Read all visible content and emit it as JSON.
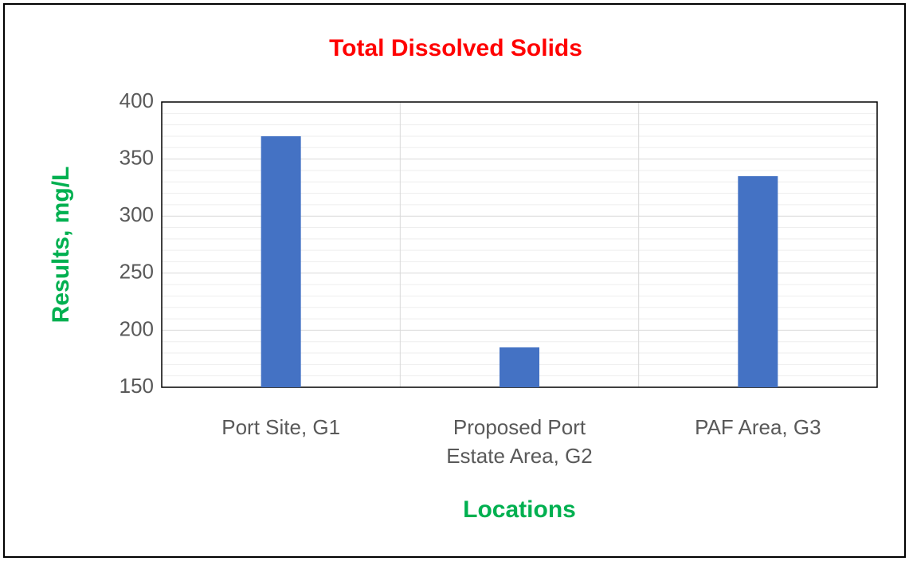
{
  "chart_data": {
    "type": "bar",
    "title": "Total Dissolved Solids",
    "categories": [
      "Port Site, G1",
      "Proposed Port Estate Area, G2",
      "PAF Area, G3"
    ],
    "values": [
      370,
      185,
      335
    ],
    "color": "#4472c4",
    "x_label": "Locations",
    "y_label": "Results, mg/L",
    "ylim": [
      150,
      400
    ],
    "yticks": [
      150,
      200,
      250,
      300,
      350,
      400
    ],
    "y_minor_ticks": [
      160,
      170,
      180,
      190,
      210,
      220,
      230,
      240,
      260,
      270,
      280,
      290,
      310,
      320,
      330,
      340,
      360,
      370,
      380,
      390
    ],
    "grid": true
  }
}
